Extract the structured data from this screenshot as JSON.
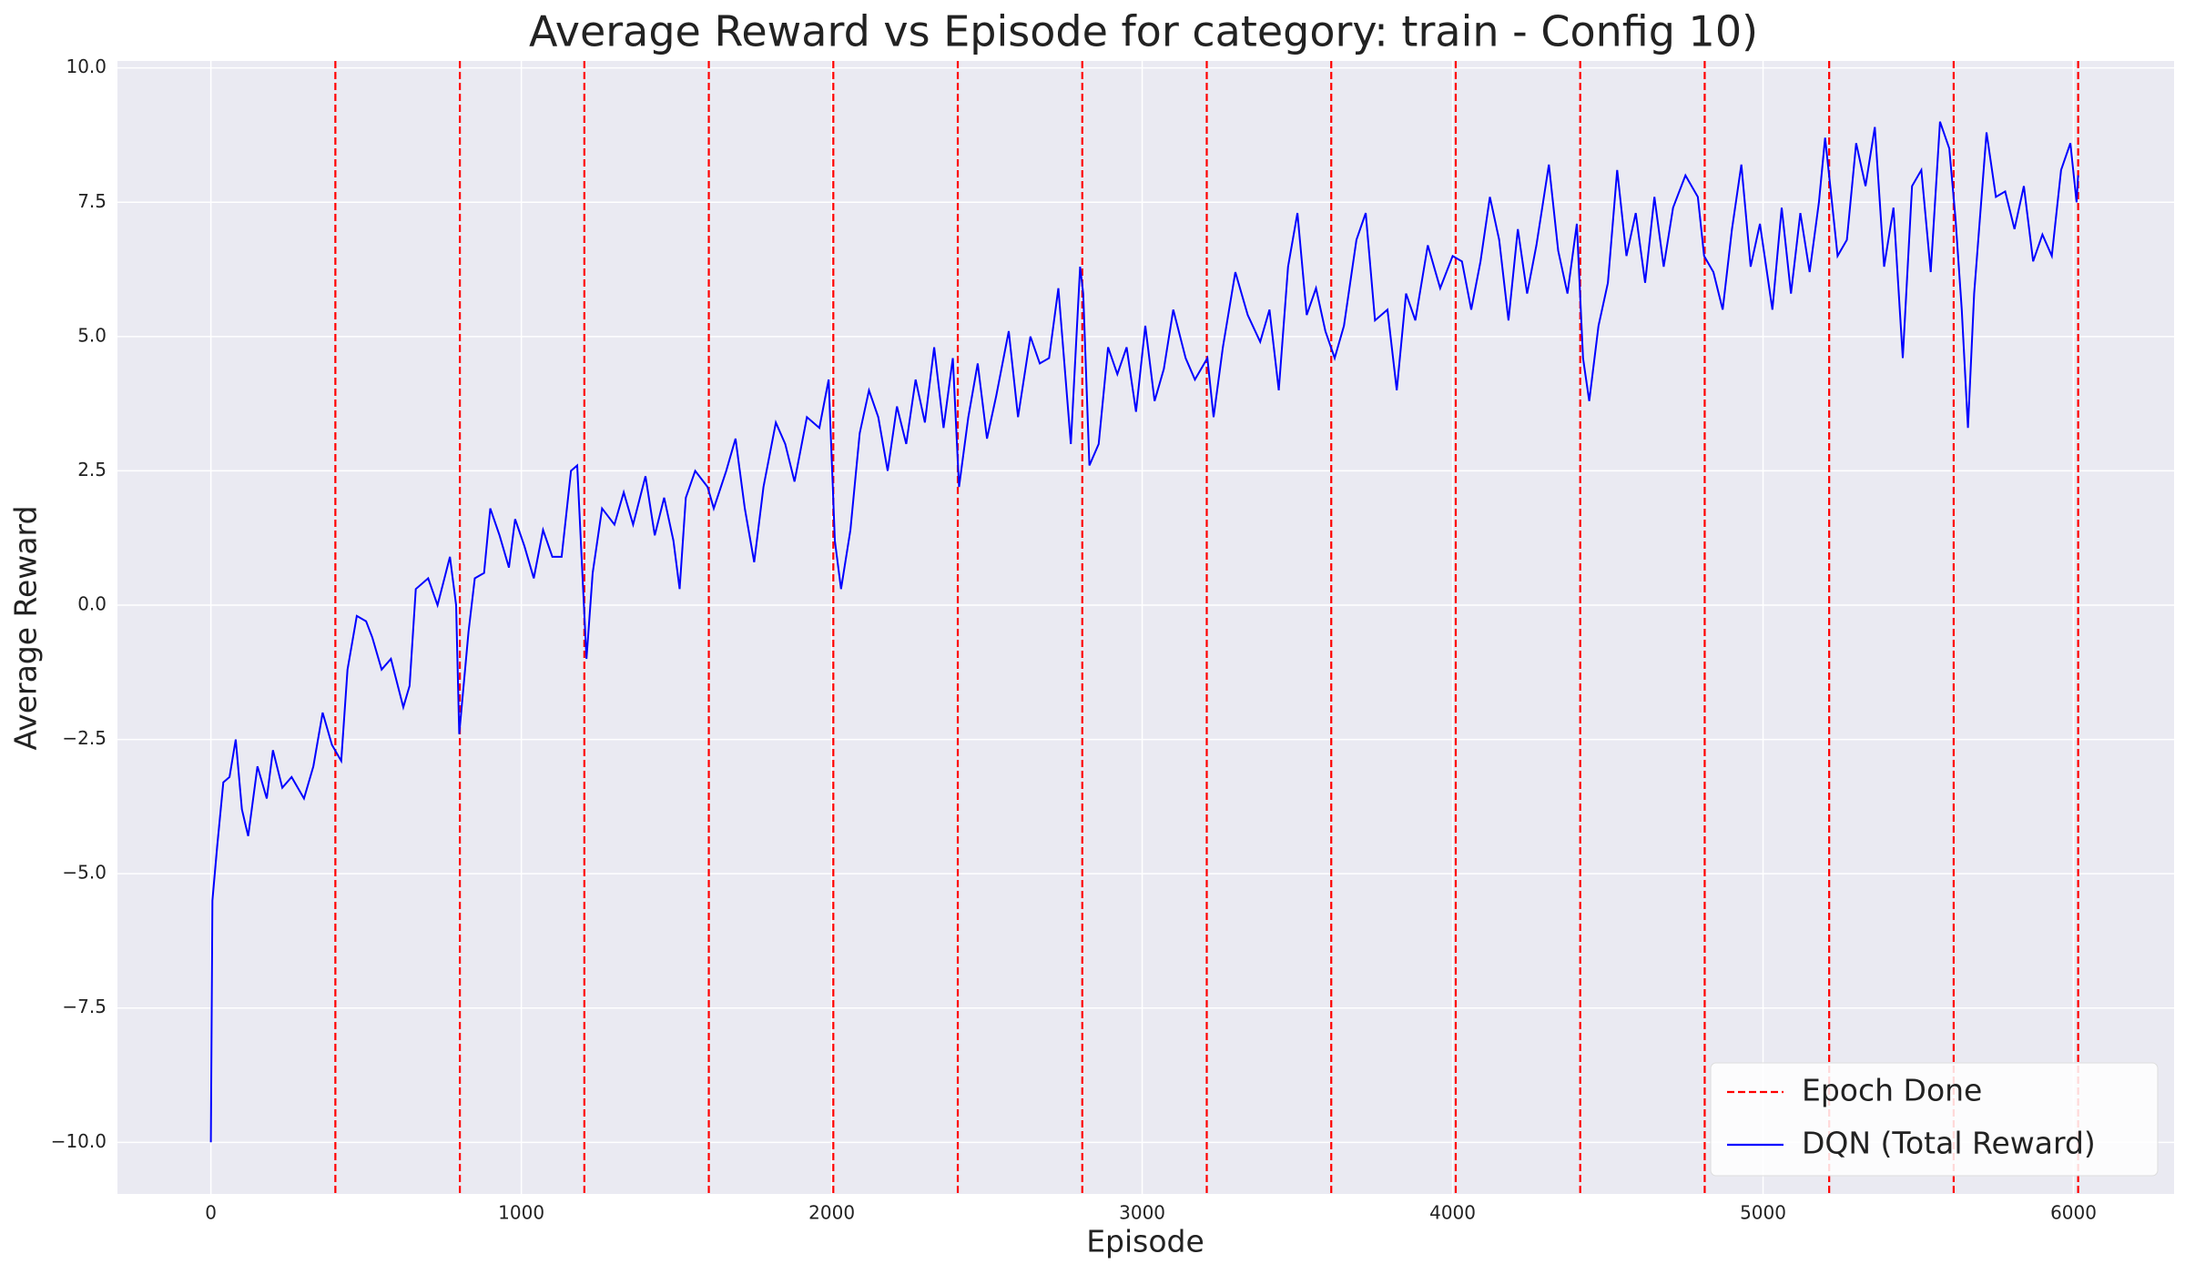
{
  "chart_data": {
    "type": "line",
    "title": "Average Reward vs Episode for category: train - Config 10)",
    "x_label": "Episode",
    "y_label": "Average Reward",
    "xlim": [
      -301,
      6324
    ],
    "ylim": [
      -10.96,
      10.13
    ],
    "xticks": [
      0,
      1000,
      2000,
      3000,
      4000,
      5000,
      6000
    ],
    "yticks": [
      {
        "value": -10,
        "label": "−10.0"
      },
      {
        "value": -7.5,
        "label": "−7.5"
      },
      {
        "value": -5,
        "label": "−5.0"
      },
      {
        "value": -2.5,
        "label": "−2.5"
      },
      {
        "value": 0,
        "label": "0.0"
      },
      {
        "value": 2.5,
        "label": "2.5"
      },
      {
        "value": 5,
        "label": "5.0"
      },
      {
        "value": 7.5,
        "label": "7.5"
      },
      {
        "value": 10,
        "label": "10.0"
      }
    ],
    "grid": true,
    "legend": "lower right",
    "vlines": {
      "name": "Epoch Done",
      "color": "#ff0000",
      "x": [
        401,
        802,
        1203,
        1604,
        2005,
        2406,
        2807,
        3208,
        3609,
        4010,
        4411,
        4812,
        5213,
        5614,
        6015
      ]
    },
    "x": [
      0,
      5,
      20,
      40,
      60,
      80,
      100,
      120,
      150,
      180,
      200,
      230,
      260,
      300,
      330,
      360,
      390,
      420,
      440,
      470,
      500,
      520,
      550,
      580,
      620,
      640,
      660,
      700,
      730,
      770,
      790,
      800,
      830,
      850,
      880,
      900,
      930,
      960,
      980,
      1010,
      1040,
      1070,
      1100,
      1130,
      1160,
      1180,
      1200,
      1210,
      1230,
      1260,
      1300,
      1330,
      1360,
      1400,
      1430,
      1460,
      1490,
      1510,
      1530,
      1560,
      1600,
      1620,
      1660,
      1690,
      1720,
      1750,
      1780,
      1820,
      1850,
      1880,
      1920,
      1960,
      1990,
      2010,
      2030,
      2060,
      2090,
      2120,
      2150,
      2180,
      2210,
      2240,
      2270,
      2300,
      2330,
      2360,
      2390,
      2410,
      2440,
      2470,
      2500,
      2530,
      2570,
      2600,
      2640,
      2670,
      2700,
      2730,
      2770,
      2800,
      2810,
      2830,
      2860,
      2890,
      2920,
      2950,
      2980,
      3010,
      3040,
      3070,
      3100,
      3140,
      3170,
      3210,
      3230,
      3260,
      3300,
      3340,
      3380,
      3410,
      3440,
      3470,
      3500,
      3530,
      3560,
      3590,
      3620,
      3650,
      3690,
      3720,
      3750,
      3790,
      3820,
      3850,
      3880,
      3920,
      3960,
      4000,
      4030,
      4060,
      4090,
      4120,
      4150,
      4180,
      4210,
      4240,
      4270,
      4310,
      4340,
      4370,
      4400,
      4420,
      4440,
      4470,
      4500,
      4530,
      4560,
      4590,
      4620,
      4650,
      4680,
      4710,
      4750,
      4790,
      4810,
      4840,
      4870,
      4900,
      4930,
      4960,
      4990,
      5030,
      5060,
      5090,
      5120,
      5150,
      5180,
      5200,
      5220,
      5240,
      5270,
      5300,
      5330,
      5360,
      5390,
      5420,
      5450,
      5480,
      5510,
      5540,
      5570,
      5600,
      5620,
      5640,
      5660,
      5680,
      5720,
      5750,
      5780,
      5810,
      5840,
      5870,
      5900,
      5930,
      5960,
      5990,
      6010,
      6015
    ],
    "series": [
      {
        "name": "DQN (Total Reward)",
        "color": "#0000ff",
        "values": [
          -10,
          -5.5,
          -4.5,
          -3.3,
          -3.2,
          -2.5,
          -3.8,
          -4.3,
          -3.0,
          -3.6,
          -2.7,
          -3.4,
          -3.2,
          -3.6,
          -3.0,
          -2.0,
          -2.6,
          -2.9,
          -1.2,
          -0.2,
          -0.3,
          -0.6,
          -1.2,
          -1.0,
          -1.9,
          -1.5,
          0.3,
          0.5,
          0.0,
          0.9,
          0.0,
          -2.4,
          -0.5,
          0.5,
          0.6,
          1.8,
          1.3,
          0.7,
          1.6,
          1.1,
          0.5,
          1.4,
          0.9,
          0.9,
          2.5,
          2.6,
          0.2,
          -1.0,
          0.6,
          1.8,
          1.5,
          2.1,
          1.5,
          2.4,
          1.3,
          2.0,
          1.2,
          0.3,
          2.0,
          2.5,
          2.2,
          1.8,
          2.5,
          3.1,
          1.8,
          0.8,
          2.2,
          3.4,
          3.0,
          2.3,
          3.5,
          3.3,
          4.2,
          1.2,
          0.3,
          1.4,
          3.2,
          4.0,
          3.5,
          2.5,
          3.7,
          3.0,
          4.2,
          3.4,
          4.8,
          3.3,
          4.6,
          2.2,
          3.5,
          4.5,
          3.1,
          3.9,
          5.1,
          3.5,
          5.0,
          4.5,
          4.6,
          5.9,
          3.0,
          6.3,
          5.8,
          2.6,
          3.0,
          4.8,
          4.3,
          4.8,
          3.6,
          5.2,
          3.8,
          4.4,
          5.5,
          4.6,
          4.2,
          4.6,
          3.5,
          4.8,
          6.2,
          5.4,
          4.9,
          5.5,
          4.0,
          6.3,
          7.3,
          5.4,
          5.9,
          5.1,
          4.6,
          5.2,
          6.8,
          7.3,
          5.3,
          5.5,
          4.0,
          5.8,
          5.3,
          6.7,
          5.9,
          6.5,
          6.4,
          5.5,
          6.4,
          7.6,
          6.8,
          5.3,
          7.0,
          5.8,
          6.7,
          8.2,
          6.6,
          5.8,
          7.1,
          4.6,
          3.8,
          5.2,
          6.0,
          8.1,
          6.5,
          7.3,
          6.0,
          7.6,
          6.3,
          7.4,
          8.0,
          7.6,
          6.5,
          6.2,
          5.5,
          7.0,
          8.2,
          6.3,
          7.1,
          5.5,
          7.4,
          5.8,
          7.3,
          6.2,
          7.5,
          8.7,
          7.6,
          6.5,
          6.8,
          8.6,
          7.8,
          8.9,
          6.3,
          7.4,
          4.6,
          7.8,
          8.1,
          6.2,
          9.0,
          8.5,
          7.2,
          5.5,
          3.3,
          5.8,
          8.8,
          7.6,
          7.7,
          7.0,
          7.8,
          6.4,
          6.9,
          6.5,
          8.1,
          8.6,
          7.5,
          8.0
        ]
      }
    ]
  }
}
